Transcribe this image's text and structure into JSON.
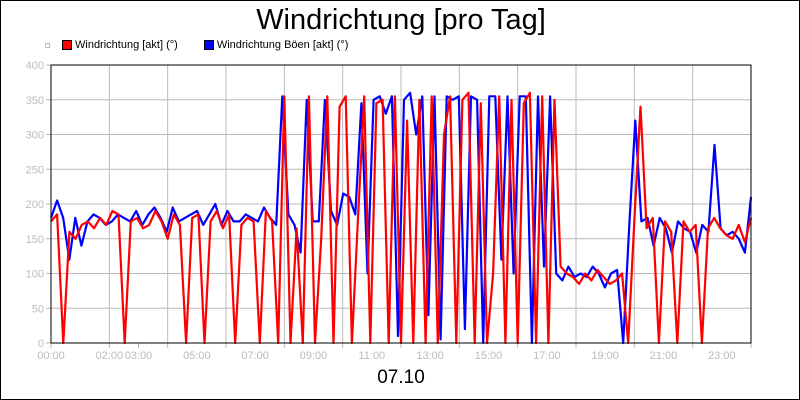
{
  "title": "Windrichtung [pro Tag]",
  "date_label": "07.10",
  "legend": [
    {
      "label": "Windrichtung [akt] (°)",
      "color": "#ff0000"
    },
    {
      "label": "Windrichtung Böen [akt] (°)",
      "color": "#0000ff"
    }
  ],
  "chart_data": {
    "type": "line",
    "title": "Windrichtung [pro Tag]",
    "xlabel": "07.10",
    "ylabel": "",
    "ylim": [
      0,
      400
    ],
    "xlim_hours": [
      0,
      24
    ],
    "yticks": [
      0,
      50,
      100,
      150,
      200,
      250,
      300,
      350,
      400
    ],
    "xticks": [
      "00:00",
      "02:00",
      "03:00",
      "05:00",
      "07:00",
      "09:00",
      "11:00",
      "13:00",
      "15:00",
      "17:00",
      "19:00",
      "21:00",
      "23:00"
    ],
    "xtick_hours": [
      0,
      2,
      3,
      5,
      7,
      9,
      11,
      13,
      15,
      17,
      19,
      21,
      23
    ],
    "grid": true,
    "legend_position": "top-left",
    "x_step_minutes": 15,
    "series": [
      {
        "name": "Windrichtung [akt] (°)",
        "color": "#ff0000",
        "values": [
          175,
          185,
          0,
          160,
          150,
          170,
          175,
          165,
          180,
          170,
          190,
          185,
          0,
          175,
          180,
          165,
          170,
          190,
          175,
          150,
          185,
          170,
          0,
          180,
          185,
          0,
          175,
          190,
          165,
          185,
          0,
          170,
          180,
          175,
          0,
          190,
          175,
          0,
          355,
          0,
          165,
          0,
          355,
          0,
          150,
          355,
          0,
          340,
          355,
          0,
          180,
          355,
          0,
          345,
          350,
          0,
          355,
          0,
          320,
          0,
          350,
          0,
          355,
          0,
          300,
          355,
          0,
          350,
          360,
          0,
          345,
          0,
          100,
          355,
          0,
          350,
          0,
          345,
          360,
          0,
          355,
          0,
          350,
          110,
          100,
          95,
          85,
          100,
          90,
          105,
          95,
          85,
          90,
          100,
          0,
          175,
          340,
          165,
          180,
          0,
          175,
          160,
          0,
          175,
          160,
          170,
          0,
          165,
          180,
          165,
          155,
          150,
          170,
          145,
          180
        ]
      },
      {
        "name": "Windrichtung Böen [akt] (°)",
        "color": "#0000ff",
        "values": [
          180,
          205,
          180,
          120,
          180,
          140,
          175,
          185,
          180,
          170,
          175,
          185,
          180,
          175,
          190,
          170,
          185,
          195,
          180,
          160,
          195,
          175,
          180,
          185,
          190,
          170,
          185,
          200,
          170,
          190,
          175,
          175,
          185,
          180,
          175,
          195,
          180,
          170,
          355,
          185,
          170,
          130,
          350,
          175,
          175,
          350,
          190,
          170,
          215,
          210,
          185,
          345,
          100,
          350,
          355,
          330,
          355,
          10,
          350,
          360,
          300,
          355,
          40,
          355,
          5,
          355,
          350,
          355,
          20,
          355,
          350,
          0,
          355,
          355,
          120,
          355,
          100,
          355,
          355,
          0,
          355,
          110,
          355,
          100,
          90,
          110,
          95,
          100,
          95,
          110,
          100,
          80,
          100,
          105,
          0,
          170,
          320,
          175,
          180,
          140,
          180,
          165,
          130,
          175,
          165,
          160,
          130,
          170,
          160,
          285,
          165,
          155,
          160,
          150,
          130,
          210
        ]
      }
    ]
  }
}
